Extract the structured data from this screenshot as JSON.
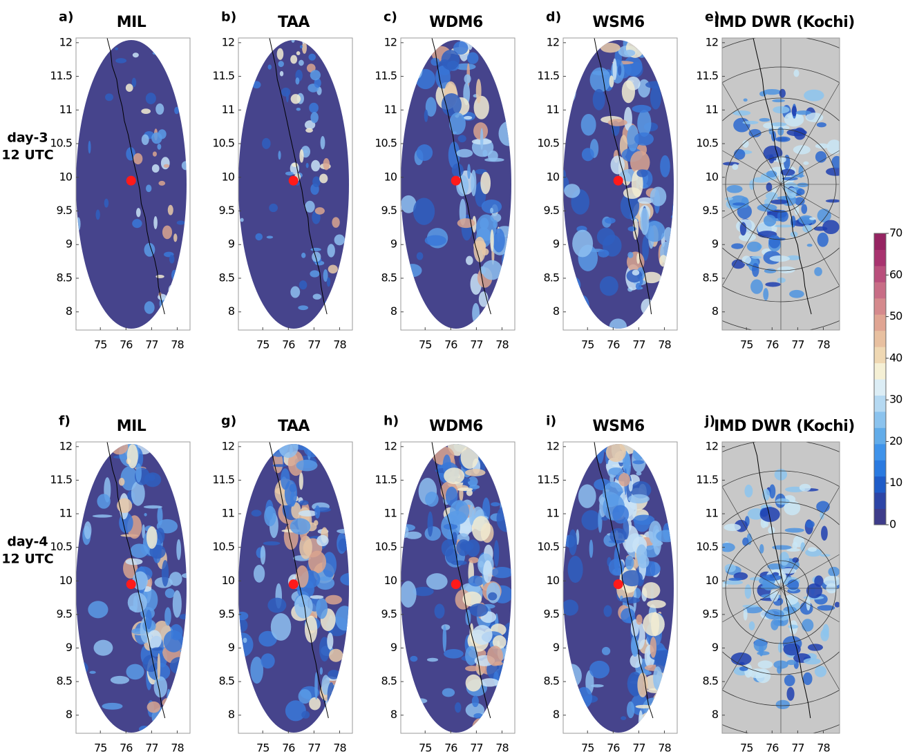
{
  "figure": {
    "row_labels": [
      [
        "day-3",
        "12 UTC"
      ],
      [
        "day-4",
        "12 UTC"
      ]
    ],
    "xlim": [
      74.05,
      78.5
    ],
    "ylim": [
      7.73,
      12.07
    ],
    "xticks": [
      75,
      76,
      77,
      78
    ],
    "yticks": [
      8,
      8.5,
      9,
      9.5,
      10,
      10.5,
      11,
      11.5,
      12
    ],
    "station": {
      "lon": 76.2,
      "lat": 9.95,
      "color": "#ff1a1a"
    },
    "panels": [
      {
        "label": "a)",
        "title": "MIL",
        "type": "model",
        "row": 0
      },
      {
        "label": "b)",
        "title": "TAA",
        "type": "model",
        "row": 0
      },
      {
        "label": "c)",
        "title": "WDM6",
        "type": "model",
        "row": 0
      },
      {
        "label": "d)",
        "title": "WSM6",
        "type": "model",
        "row": 0
      },
      {
        "label": "e)",
        "title": "IMD DWR (Kochi)",
        "type": "radar",
        "row": 0
      },
      {
        "label": "f)",
        "title": "MIL",
        "type": "model",
        "row": 1
      },
      {
        "label": "g)",
        "title": "TAA",
        "type": "model",
        "row": 1
      },
      {
        "label": "h)",
        "title": "WDM6",
        "type": "model",
        "row": 1
      },
      {
        "label": "i)",
        "title": "WSM6",
        "type": "model",
        "row": 1
      },
      {
        "label": "j)",
        "title": "IMD DWR (Kochi)",
        "type": "radar",
        "row": 1
      }
    ],
    "colorbar": {
      "lim": [
        0,
        70
      ],
      "ticks": [
        0,
        10,
        20,
        30,
        40,
        50,
        60,
        70
      ]
    }
  }
}
